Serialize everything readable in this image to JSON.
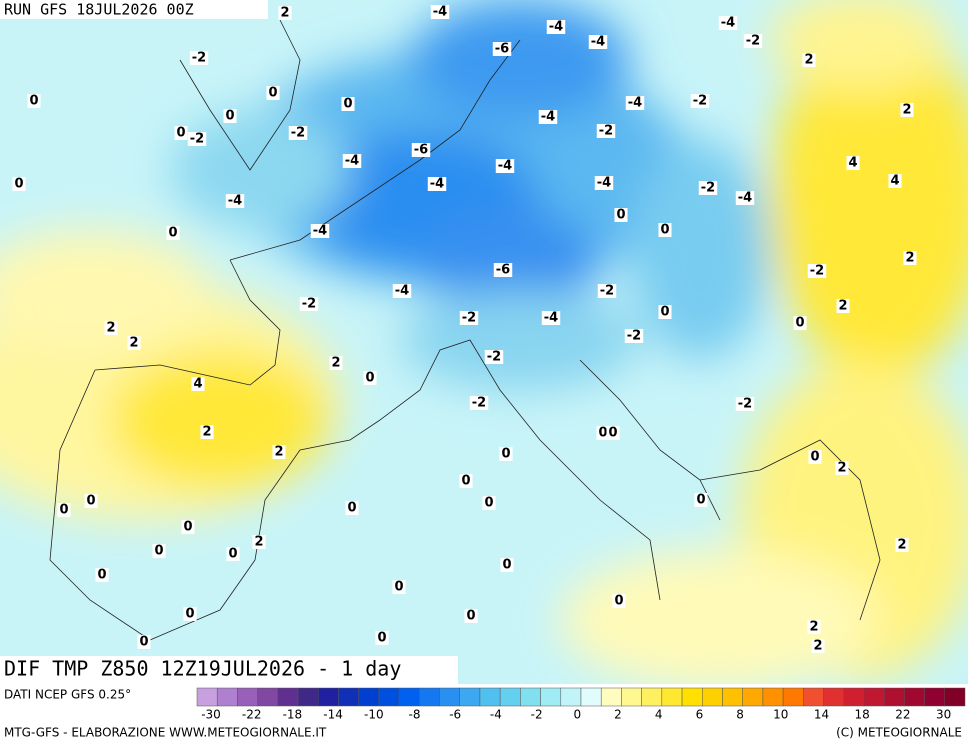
{
  "header": {
    "run": "RUN GFS 18JUL2026 00Z",
    "product": "DIF TMP Z850 12Z19JUL2026 - 1 day"
  },
  "map": {
    "contour_labels": [
      -2,
      -2,
      0,
      0,
      0,
      0,
      0,
      -2,
      0,
      -4,
      0,
      -4,
      -4,
      -6,
      -4,
      -4,
      -6,
      -4,
      -4,
      -4,
      2,
      -4,
      -4,
      -2,
      -2,
      -4,
      0,
      0,
      -2,
      -4,
      -4,
      -2,
      2,
      2,
      4,
      4,
      2,
      -2,
      2,
      0,
      0,
      -2,
      -2,
      -6,
      -4,
      -2,
      -2,
      -4,
      -2,
      -2,
      2,
      2,
      2,
      0,
      4,
      2,
      2,
      -2,
      0,
      0,
      0,
      0,
      2,
      0,
      0,
      0,
      0,
      0,
      0,
      0,
      0,
      0,
      2,
      2,
      0,
      0,
      0,
      0,
      0,
      0,
      0,
      0,
      2,
      2
    ]
  },
  "colorbar": {
    "source": "DATI NCEP GFS 0.25°",
    "colors": [
      "#c8a0e0",
      "#b080d0",
      "#9860b8",
      "#8048a0",
      "#603090",
      "#402888",
      "#2020a0",
      "#1030b8",
      "#0040d0",
      "#0050e0",
      "#0060f0",
      "#1478f0",
      "#2890f0",
      "#3ca8f0",
      "#50c0f0",
      "#64d0f0",
      "#80e0f0",
      "#a0ecf4",
      "#c0f4f8",
      "#e0fcfc",
      "#fffcc0",
      "#fff890",
      "#fff060",
      "#ffe830",
      "#ffe000",
      "#ffd000",
      "#ffc000",
      "#ffa800",
      "#ff9000",
      "#ff7800",
      "#f05030",
      "#e03030",
      "#d02030",
      "#c01830",
      "#b01030",
      "#a00830",
      "#900030",
      "#800028"
    ],
    "ticks": [
      -30,
      -22,
      -18,
      -14,
      -10,
      -8,
      -6,
      -4,
      -2,
      0,
      2,
      4,
      6,
      8,
      10,
      14,
      18,
      22,
      30
    ]
  },
  "footer": {
    "left": "MTG-GFS - ELABORAZIONE WWW.METEOGIORNALE.IT",
    "right": "(C) METEOGIORNALE"
  }
}
